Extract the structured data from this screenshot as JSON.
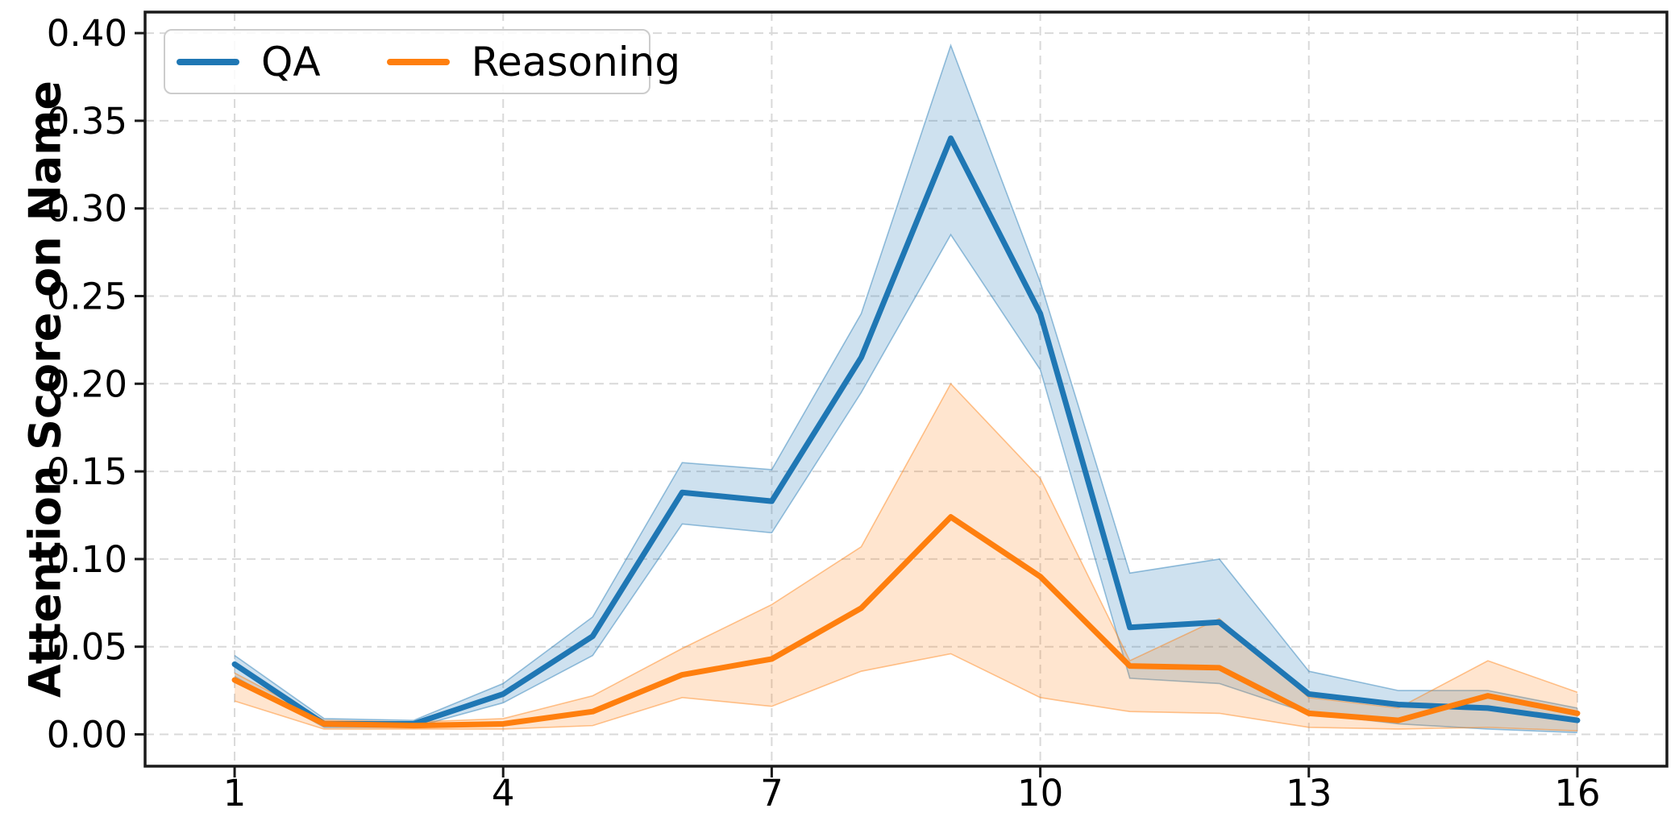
{
  "chart_data": {
    "type": "line",
    "title": "",
    "xlabel": "",
    "ylabel": "Attention Score on Name",
    "x": [
      1,
      2,
      3,
      4,
      5,
      6,
      7,
      8,
      9,
      10,
      11,
      12,
      13,
      14,
      15,
      16
    ],
    "xticks": [
      "1",
      "4",
      "7",
      "10",
      "13",
      "16"
    ],
    "yticks": [
      "0.00",
      "0.05",
      "0.10",
      "0.15",
      "0.20",
      "0.25",
      "0.30",
      "0.35",
      "0.40"
    ],
    "xlim": [
      0,
      17
    ],
    "ylim": [
      -0.018,
      0.412
    ],
    "grid": true,
    "grid_style": "dashed",
    "legend_position": "upper left",
    "series": [
      {
        "name": "QA",
        "color": "#1f77b4",
        "band_alpha": 0.22,
        "values": [
          0.04,
          0.006,
          0.006,
          0.023,
          0.056,
          0.138,
          0.133,
          0.215,
          0.34,
          0.24,
          0.061,
          0.064,
          0.023,
          0.017,
          0.015,
          0.008
        ],
        "band_lower": [
          0.033,
          0.004,
          0.004,
          0.018,
          0.045,
          0.12,
          0.115,
          0.195,
          0.285,
          0.208,
          0.032,
          0.029,
          0.012,
          0.006,
          0.003,
          0.001
        ],
        "band_upper": [
          0.045,
          0.009,
          0.008,
          0.029,
          0.067,
          0.155,
          0.151,
          0.24,
          0.393,
          0.258,
          0.092,
          0.1,
          0.036,
          0.025,
          0.025,
          0.015
        ]
      },
      {
        "name": "Reasoning",
        "color": "#ff7f0e",
        "band_alpha": 0.2,
        "values": [
          0.031,
          0.006,
          0.005,
          0.006,
          0.013,
          0.034,
          0.043,
          0.072,
          0.124,
          0.09,
          0.039,
          0.038,
          0.012,
          0.008,
          0.022,
          0.012
        ],
        "band_lower": [
          0.019,
          0.003,
          0.003,
          0.003,
          0.005,
          0.021,
          0.016,
          0.036,
          0.046,
          0.021,
          0.013,
          0.012,
          0.004,
          0.003,
          0.004,
          0.002
        ],
        "band_upper": [
          0.035,
          0.008,
          0.007,
          0.009,
          0.022,
          0.049,
          0.074,
          0.107,
          0.2,
          0.146,
          0.042,
          0.066,
          0.021,
          0.015,
          0.042,
          0.024
        ]
      }
    ],
    "style": {
      "grid_color": "#d9d9d9",
      "spine_color": "#1a1a1a",
      "tick_color": "#1a1a1a",
      "text_color": "#000000"
    }
  }
}
